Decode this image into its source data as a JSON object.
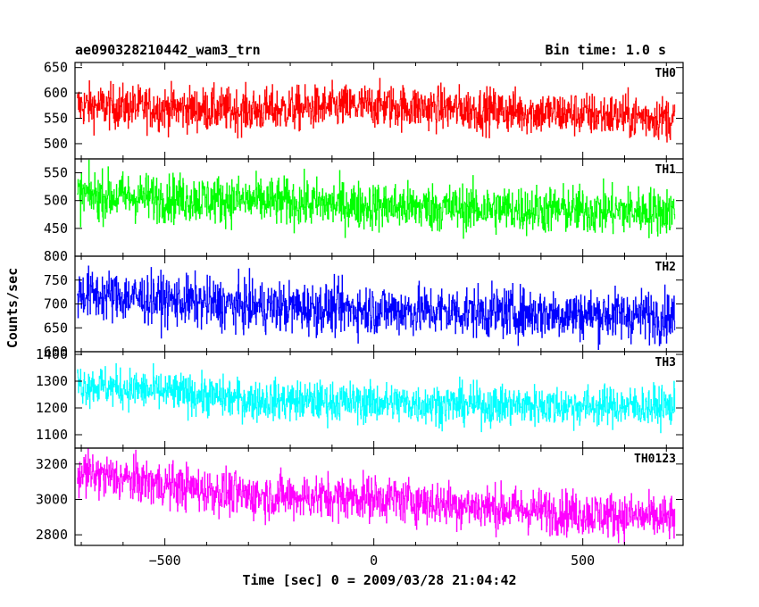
{
  "chart_data": {
    "type": "line",
    "title": "ae090328210442_wam3_trn",
    "bin_time_label": "Bin time: 1.0 s",
    "xlabel": "Time [sec] 0 = 2009/03/28 21:04:42",
    "ylabel": "Counts/sec",
    "xlim": [
      -715,
      740
    ],
    "x_ticks": [
      -500,
      0,
      500
    ],
    "x_data_range": [
      -710,
      720
    ],
    "bin_seconds": 1.0,
    "panels": [
      {
        "name": "TH0",
        "color": "#ff0000",
        "ylim": [
          470,
          660
        ],
        "y_ticks": [
          500,
          550,
          600,
          650
        ],
        "trend": [
          [
            -710,
            575
          ],
          [
            -300,
            565
          ],
          [
            0,
            575
          ],
          [
            300,
            565
          ],
          [
            720,
            550
          ]
        ],
        "noise_sd": 22
      },
      {
        "name": "TH1",
        "color": "#00ff00",
        "ylim": [
          400,
          575
        ],
        "y_ticks": [
          450,
          500,
          550
        ],
        "trend": [
          [
            -710,
            510
          ],
          [
            -300,
            500
          ],
          [
            0,
            490
          ],
          [
            300,
            485
          ],
          [
            720,
            480
          ]
        ],
        "noise_sd": 22
      },
      {
        "name": "TH2",
        "color": "#0000ff",
        "ylim": [
          600,
          800
        ],
        "y_ticks": [
          600,
          650,
          700,
          750,
          800
        ],
        "trend": [
          [
            -710,
            722
          ],
          [
            -300,
            695
          ],
          [
            0,
            688
          ],
          [
            300,
            682
          ],
          [
            720,
            675
          ]
        ],
        "noise_sd": 27
      },
      {
        "name": "TH3",
        "color": "#00ffff",
        "ylim": [
          1050,
          1410
        ],
        "y_ticks": [
          1100,
          1200,
          1300,
          1400
        ],
        "trend": [
          [
            -710,
            1290
          ],
          [
            -300,
            1230
          ],
          [
            0,
            1220
          ],
          [
            300,
            1210
          ],
          [
            720,
            1205
          ]
        ],
        "noise_sd": 38
      },
      {
        "name": "TH0123",
        "color": "#ff00ff",
        "ylim": [
          2740,
          3290
        ],
        "y_ticks": [
          2800,
          3000,
          3200
        ],
        "trend": [
          [
            -710,
            3150
          ],
          [
            -300,
            3020
          ],
          [
            0,
            3010
          ],
          [
            300,
            2950
          ],
          [
            720,
            2890
          ]
        ],
        "noise_sd": 65
      }
    ],
    "grid": false,
    "legend": "none"
  }
}
